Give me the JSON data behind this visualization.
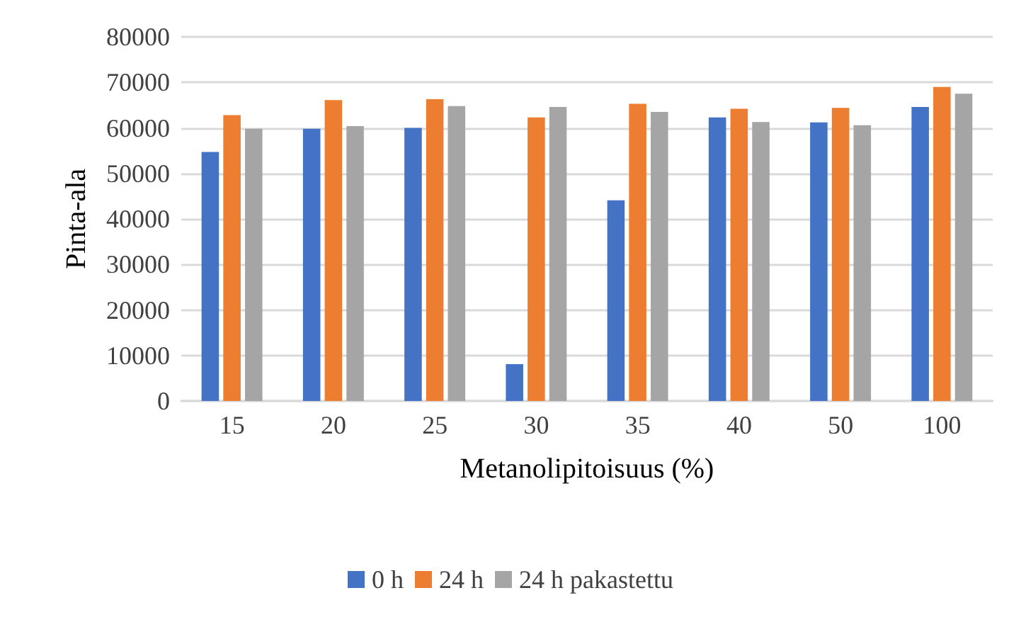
{
  "chart_data": {
    "type": "bar",
    "xlabel": "Metanolipitoisuus (%)",
    "ylabel": "Pinta-ala",
    "categories": [
      "15",
      "20",
      "25",
      "30",
      "35",
      "40",
      "50",
      "100"
    ],
    "series": [
      {
        "name": "0 h",
        "color": "#4472c4",
        "values": [
          54700,
          59800,
          60000,
          8100,
          44100,
          62300,
          61200,
          64600
        ]
      },
      {
        "name": "24 h",
        "color": "#ed7d31",
        "values": [
          62800,
          66100,
          66300,
          62300,
          65300,
          64200,
          64400,
          69000
        ]
      },
      {
        "name": "24 h pakastettu",
        "color": "#a5a5a5",
        "values": [
          59800,
          60400,
          64800,
          64600,
          63500,
          61300,
          60600,
          67500
        ]
      }
    ],
    "ylim": [
      0,
      80000
    ],
    "yticks": [
      0,
      10000,
      20000,
      30000,
      40000,
      50000,
      60000,
      70000,
      80000
    ],
    "grid": "y",
    "legend": "bottom"
  }
}
